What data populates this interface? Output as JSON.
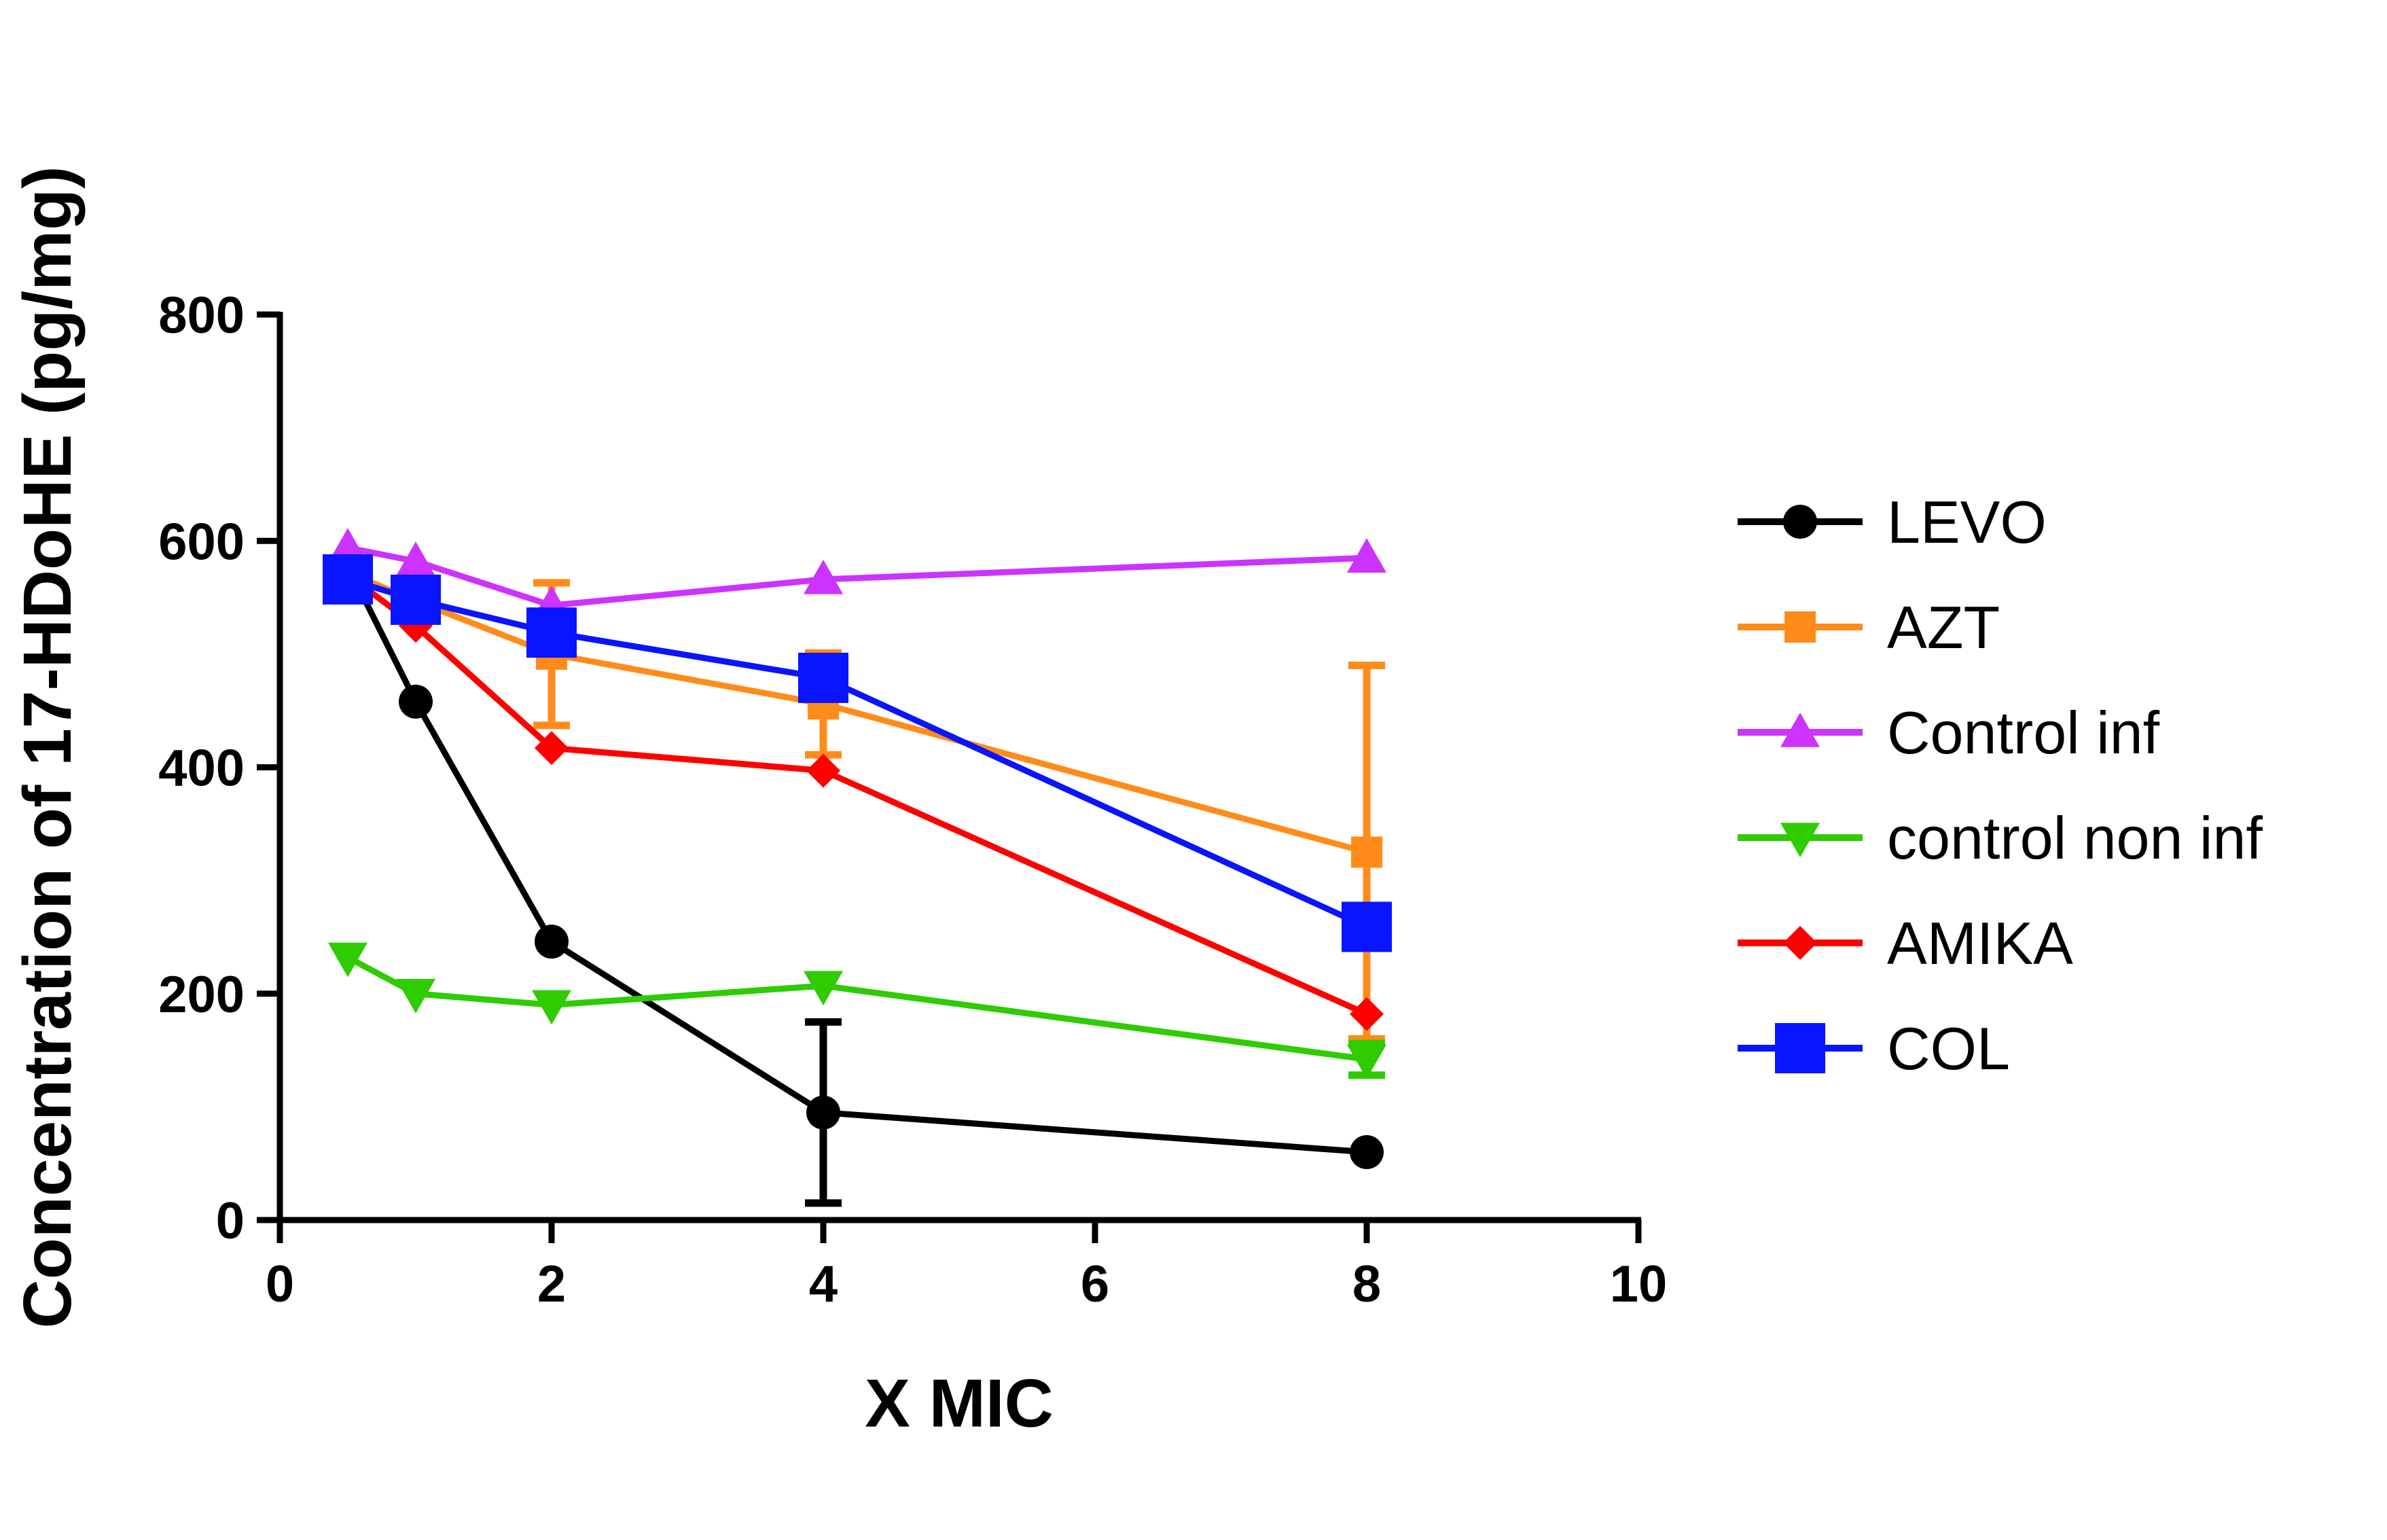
{
  "chart_data": {
    "type": "line",
    "title": "",
    "xlabel": "X MIC",
    "ylabel": "Concentration of 17-HDoHE (pg/mg)",
    "xlim": [
      0,
      10
    ],
    "ylim": [
      0,
      800
    ],
    "xticks": [
      0,
      2,
      4,
      6,
      8,
      10
    ],
    "yticks": [
      0,
      200,
      400,
      600,
      800
    ],
    "x": [
      0.5,
      1,
      2,
      4,
      8
    ],
    "legend_position": "right",
    "grid": false,
    "series": [
      {
        "name": "LEVO",
        "color": "#000000",
        "marker": "circle",
        "values": [
          578,
          458,
          246,
          95,
          60
        ],
        "errors": [
          0,
          0,
          0,
          80,
          0
        ]
      },
      {
        "name": "AZT",
        "color": "#ff8c1a",
        "marker": "square-small",
        "values": [
          572,
          547,
          500,
          456,
          325
        ],
        "errors": [
          0,
          0,
          63,
          45,
          165
        ]
      },
      {
        "name": "Control inf",
        "color": "#cc33ff",
        "marker": "triangle-up",
        "values": [
          594,
          582,
          543,
          566,
          585
        ],
        "errors": [
          0,
          0,
          0,
          0,
          0
        ]
      },
      {
        "name": "control non inf",
        "color": "#2ecc00",
        "marker": "triangle-down",
        "values": [
          232,
          200,
          190,
          207,
          142
        ],
        "errors": [
          0,
          0,
          0,
          0,
          14
        ]
      },
      {
        "name": "AMIKA",
        "color": "#ff0000",
        "marker": "diamond",
        "values": [
          570,
          525,
          417,
          397,
          182
        ],
        "errors": [
          0,
          0,
          0,
          0,
          0
        ]
      },
      {
        "name": "COL",
        "color": "#0a14ff",
        "marker": "square-large",
        "values": [
          566,
          548,
          519,
          479,
          259
        ],
        "errors": [
          0,
          0,
          0,
          0,
          0
        ]
      }
    ]
  }
}
